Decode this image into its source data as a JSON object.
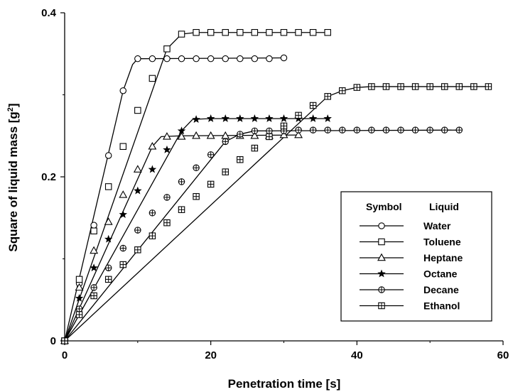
{
  "chart_data": {
    "type": "line",
    "xlabel": "Penetration time [s]",
    "ylabel": "Square of liquid mass [g",
    "ylabel_sup": "2",
    "ylabel_end": "]",
    "xlim": [
      0,
      60
    ],
    "ylim": [
      0,
      0.4
    ],
    "xticks": [
      "0",
      "20",
      "40",
      "60"
    ],
    "yticks": [
      "0",
      "0.2",
      "0.4"
    ],
    "grid": false,
    "legend": {
      "placement": "lower-right",
      "header_symbol": "Symbol",
      "header_liquid": "Liquid"
    },
    "series": [
      {
        "name": "Water",
        "marker": "circle",
        "x": [
          0,
          2,
          4,
          6,
          8,
          10,
          12,
          14,
          16,
          18,
          20,
          22,
          24,
          26,
          28,
          30
        ],
        "y": [
          0,
          0.07,
          0.141,
          0.226,
          0.305,
          0.344,
          0.344,
          0.344,
          0.344,
          0.344,
          0.344,
          0.344,
          0.344,
          0.344,
          0.344,
          0.345
        ],
        "line_x": [
          0,
          8,
          9.3,
          10,
          30
        ],
        "line_y": [
          0,
          0.305,
          0.337,
          0.344,
          0.345
        ]
      },
      {
        "name": "Toluene",
        "marker": "square",
        "x": [
          0,
          2,
          4,
          6,
          8,
          10,
          12,
          14,
          16,
          18,
          20,
          22,
          24,
          26,
          28,
          30,
          32,
          34,
          36
        ],
        "y": [
          0,
          0.075,
          0.134,
          0.188,
          0.237,
          0.281,
          0.32,
          0.356,
          0.374,
          0.376,
          0.376,
          0.376,
          0.376,
          0.376,
          0.376,
          0.376,
          0.376,
          0.376,
          0.376
        ],
        "line_x": [
          0,
          14,
          16,
          18,
          36
        ],
        "line_y": [
          0,
          0.356,
          0.374,
          0.376,
          0.376
        ]
      },
      {
        "name": "Heptane",
        "marker": "triangle",
        "x": [
          0,
          2,
          4,
          6,
          8,
          10,
          12,
          14,
          16,
          18,
          20,
          22,
          24,
          26,
          28,
          30,
          32
        ],
        "y": [
          0,
          0.065,
          0.11,
          0.145,
          0.178,
          0.209,
          0.237,
          0.249,
          0.249,
          0.25,
          0.25,
          0.25,
          0.25,
          0.25,
          0.25,
          0.251,
          0.251
        ],
        "line_x": [
          0,
          12,
          13.2,
          16,
          32
        ],
        "line_y": [
          0,
          0.237,
          0.249,
          0.25,
          0.251
        ]
      },
      {
        "name": "Octane",
        "marker": "star",
        "x": [
          0,
          2,
          4,
          6,
          8,
          10,
          12,
          14,
          16,
          18,
          20,
          22,
          24,
          26,
          28,
          30,
          32,
          34,
          36
        ],
        "y": [
          0,
          0.052,
          0.089,
          0.124,
          0.154,
          0.183,
          0.209,
          0.233,
          0.256,
          0.27,
          0.271,
          0.271,
          0.271,
          0.271,
          0.271,
          0.271,
          0.271,
          0.271,
          0.271
        ],
        "line_x": [
          0,
          16,
          17.5,
          20,
          36
        ],
        "line_y": [
          0,
          0.256,
          0.27,
          0.271,
          0.271
        ]
      },
      {
        "name": "Decane",
        "marker": "circle-plus",
        "x": [
          0,
          2,
          4,
          6,
          8,
          10,
          12,
          14,
          16,
          18,
          20,
          22,
          24,
          26,
          28,
          30,
          32,
          34,
          36,
          38,
          40,
          42,
          44,
          46,
          48,
          50,
          52,
          54
        ],
        "y": [
          0,
          0.039,
          0.065,
          0.089,
          0.113,
          0.135,
          0.156,
          0.175,
          0.194,
          0.211,
          0.227,
          0.243,
          0.252,
          0.256,
          0.256,
          0.256,
          0.257,
          0.257,
          0.257,
          0.257,
          0.257,
          0.257,
          0.257,
          0.257,
          0.257,
          0.257,
          0.257,
          0.257
        ],
        "line_x": [
          0,
          22,
          24,
          26,
          54
        ],
        "line_y": [
          0,
          0.243,
          0.252,
          0.256,
          0.257
        ]
      },
      {
        "name": "Ethanol",
        "marker": "square-plus",
        "x": [
          0,
          2,
          4,
          6,
          8,
          10,
          12,
          14,
          16,
          18,
          20,
          22,
          24,
          26,
          28,
          30,
          32,
          34,
          36,
          38,
          40,
          42,
          44,
          46,
          48,
          50,
          52,
          54,
          56,
          58
        ],
        "y": [
          0,
          0.032,
          0.055,
          0.075,
          0.093,
          0.111,
          0.128,
          0.144,
          0.16,
          0.176,
          0.191,
          0.206,
          0.221,
          0.235,
          0.249,
          0.262,
          0.275,
          0.287,
          0.298,
          0.305,
          0.309,
          0.31,
          0.31,
          0.31,
          0.31,
          0.31,
          0.31,
          0.31,
          0.31,
          0.31
        ],
        "line_x": [
          0,
          36,
          38,
          40,
          42,
          58
        ],
        "line_y": [
          0,
          0.298,
          0.305,
          0.309,
          0.31,
          0.31
        ]
      }
    ]
  }
}
